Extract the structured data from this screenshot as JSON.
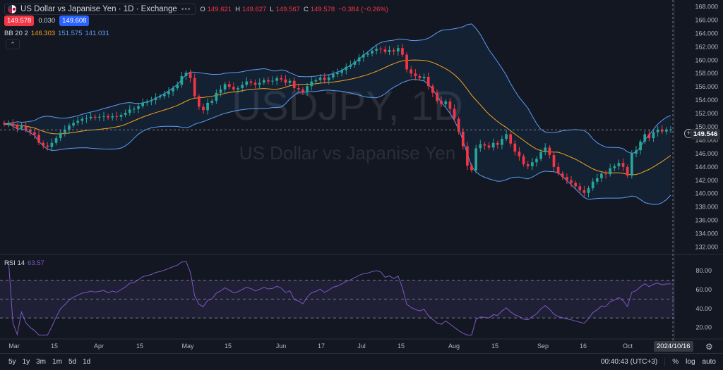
{
  "header": {
    "title": "US Dollar vs Japanise Yen · 1D · Exchange",
    "more": "•••",
    "ohlc": [
      {
        "k": "O",
        "v": "149.621"
      },
      {
        "k": "H",
        "v": "149.627"
      },
      {
        "k": "L",
        "v": "149.567"
      },
      {
        "k": "C",
        "v": "149.578"
      },
      {
        "k": "",
        "v": "−0.384 (−0.26%)"
      }
    ],
    "bid": "149.578",
    "spread": "0.030",
    "ask": "149.608"
  },
  "indicator_bb": {
    "name": "BB 20 2",
    "basis": "146.303",
    "upper": "151.575",
    "lower": "141.031"
  },
  "indicator_rsi": {
    "name": "RSI 14",
    "value": "63.57"
  },
  "watermark": {
    "symbol": "USDJPY, 1D",
    "name": "US Dollar vs Japanise Yen"
  },
  "price_label": "149.546",
  "date_label": "2024/10/16",
  "bottom": {
    "ranges": [
      "5y",
      "1y",
      "3m",
      "1m",
      "5d",
      "1d"
    ],
    "time": "00:40:43 (UTC+3)",
    "percent": "%",
    "log": "log",
    "auto": "auto"
  },
  "colors": {
    "up": "#26a69a",
    "down": "#f23645",
    "basis": "#f7a21b",
    "band": "#5b9cf6",
    "rsi": "#7e57c2"
  },
  "chart_data": {
    "type": "candlestick",
    "title": "USDJPY, 1D",
    "price_axis": {
      "ticks": [
        132,
        134,
        136,
        138,
        140,
        142,
        144,
        146,
        148,
        150,
        152,
        154,
        156,
        158,
        160,
        162,
        164,
        166,
        168
      ],
      "range": [
        131,
        169
      ]
    },
    "rsi_axis": {
      "ticks": [
        20,
        40,
        60,
        80
      ],
      "range": [
        10,
        92
      ],
      "band": [
        30,
        70
      ],
      "midline": 50
    },
    "x_labels": [
      "Mar",
      "15",
      "Apr",
      "15",
      "May",
      "15",
      "Jun",
      "17",
      "Jul",
      "15",
      "Aug",
      "15",
      "Sep",
      "16",
      "Oct"
    ],
    "close": [
      150.4,
      150.5,
      150.2,
      149.8,
      150.1,
      149.6,
      149.2,
      148.8,
      147.6,
      147.2,
      147.0,
      147.6,
      148.3,
      149.1,
      149.6,
      150.2,
      150.6,
      150.9,
      151.2,
      151.3,
      151.5,
      151.4,
      151.5,
      151.6,
      151.4,
      151.6,
      151.5,
      151.8,
      152.1,
      152.6,
      152.7,
      153.1,
      153.6,
      153.8,
      154.0,
      154.4,
      154.6,
      154.9,
      155.3,
      155.8,
      156.3,
      157.6,
      158.1,
      157.3,
      154.6,
      153.0,
      152.5,
      153.6,
      153.9,
      155.1,
      155.6,
      156.4,
      156.0,
      155.6,
      155.8,
      156.3,
      156.8,
      156.6,
      156.3,
      156.6,
      157.0,
      156.8,
      156.9,
      157.3,
      157.1,
      156.6,
      156.9,
      155.8,
      155.6,
      155.2,
      156.1,
      156.8,
      157.0,
      157.4,
      157.0,
      157.4,
      157.9,
      158.1,
      158.5,
      159.0,
      159.3,
      159.8,
      160.4,
      160.8,
      161.0,
      161.4,
      161.7,
      161.6,
      161.2,
      161.5,
      161.3,
      161.8,
      160.8,
      158.6,
      158.0,
      157.6,
      157.3,
      157.5,
      156.1,
      155.1,
      153.9,
      153.4,
      153.8,
      152.7,
      151.2,
      149.3,
      147.1,
      144.2,
      143.5,
      146.8,
      147.4,
      147.2,
      146.9,
      147.6,
      147.3,
      148.2,
      148.9,
      147.5,
      146.3,
      145.6,
      144.4,
      144.1,
      144.7,
      145.2,
      146.2,
      146.9,
      145.8,
      144.0,
      143.0,
      142.5,
      142.0,
      141.6,
      141.1,
      140.5,
      140.1,
      140.8,
      141.8,
      142.3,
      143.0,
      142.9,
      143.8,
      144.1,
      144.6,
      144.0,
      142.7,
      146.0,
      146.5,
      147.8,
      148.9,
      148.3,
      149.2,
      149.6,
      149.3,
      149.6,
      149.6
    ],
    "ohlc_note": "daily candles, open≈previous close",
    "bollinger": {
      "period": 20,
      "mult": 2,
      "basis": 146.303,
      "upper": 151.575,
      "lower": 141.031
    },
    "rsi": {
      "period": 14,
      "last": 63.57
    }
  }
}
